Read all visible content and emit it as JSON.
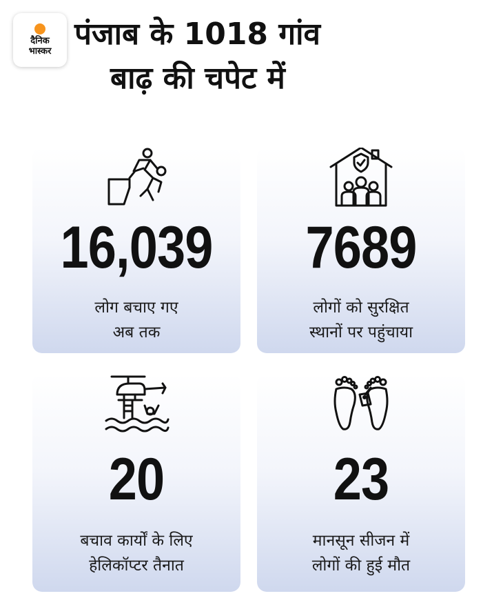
{
  "brand": {
    "line1": "दैनिक",
    "line2": "भास्कर",
    "accent": "#f7941d"
  },
  "headline": {
    "line1": "पंजाब के 1018 गांव",
    "line2": "बाढ़ की चपेट में"
  },
  "cards": [
    {
      "value": "16,039",
      "label_line1": "लोग बचाए गए",
      "label_line2": "अब तक",
      "icon": "rescue-icon"
    },
    {
      "value": "7689",
      "label_line1": "लोगों को सुरक्षित",
      "label_line2": "स्थानों पर पहुंचाया",
      "icon": "safe-shelter-icon"
    },
    {
      "value": "20",
      "label_line1": "बचाव कार्यों के लिए",
      "label_line2": "हेलिकॉप्टर तैनात",
      "icon": "helicopter-rescue-icon"
    },
    {
      "value": "23",
      "label_line1": "मानसून सीजन में",
      "label_line2": "लोगों की हुई मौत",
      "icon": "deceased-feet-icon"
    }
  ],
  "colors": {
    "card_top": "#ffffff",
    "card_bottom": "#cfd8ee",
    "text": "#111111"
  }
}
